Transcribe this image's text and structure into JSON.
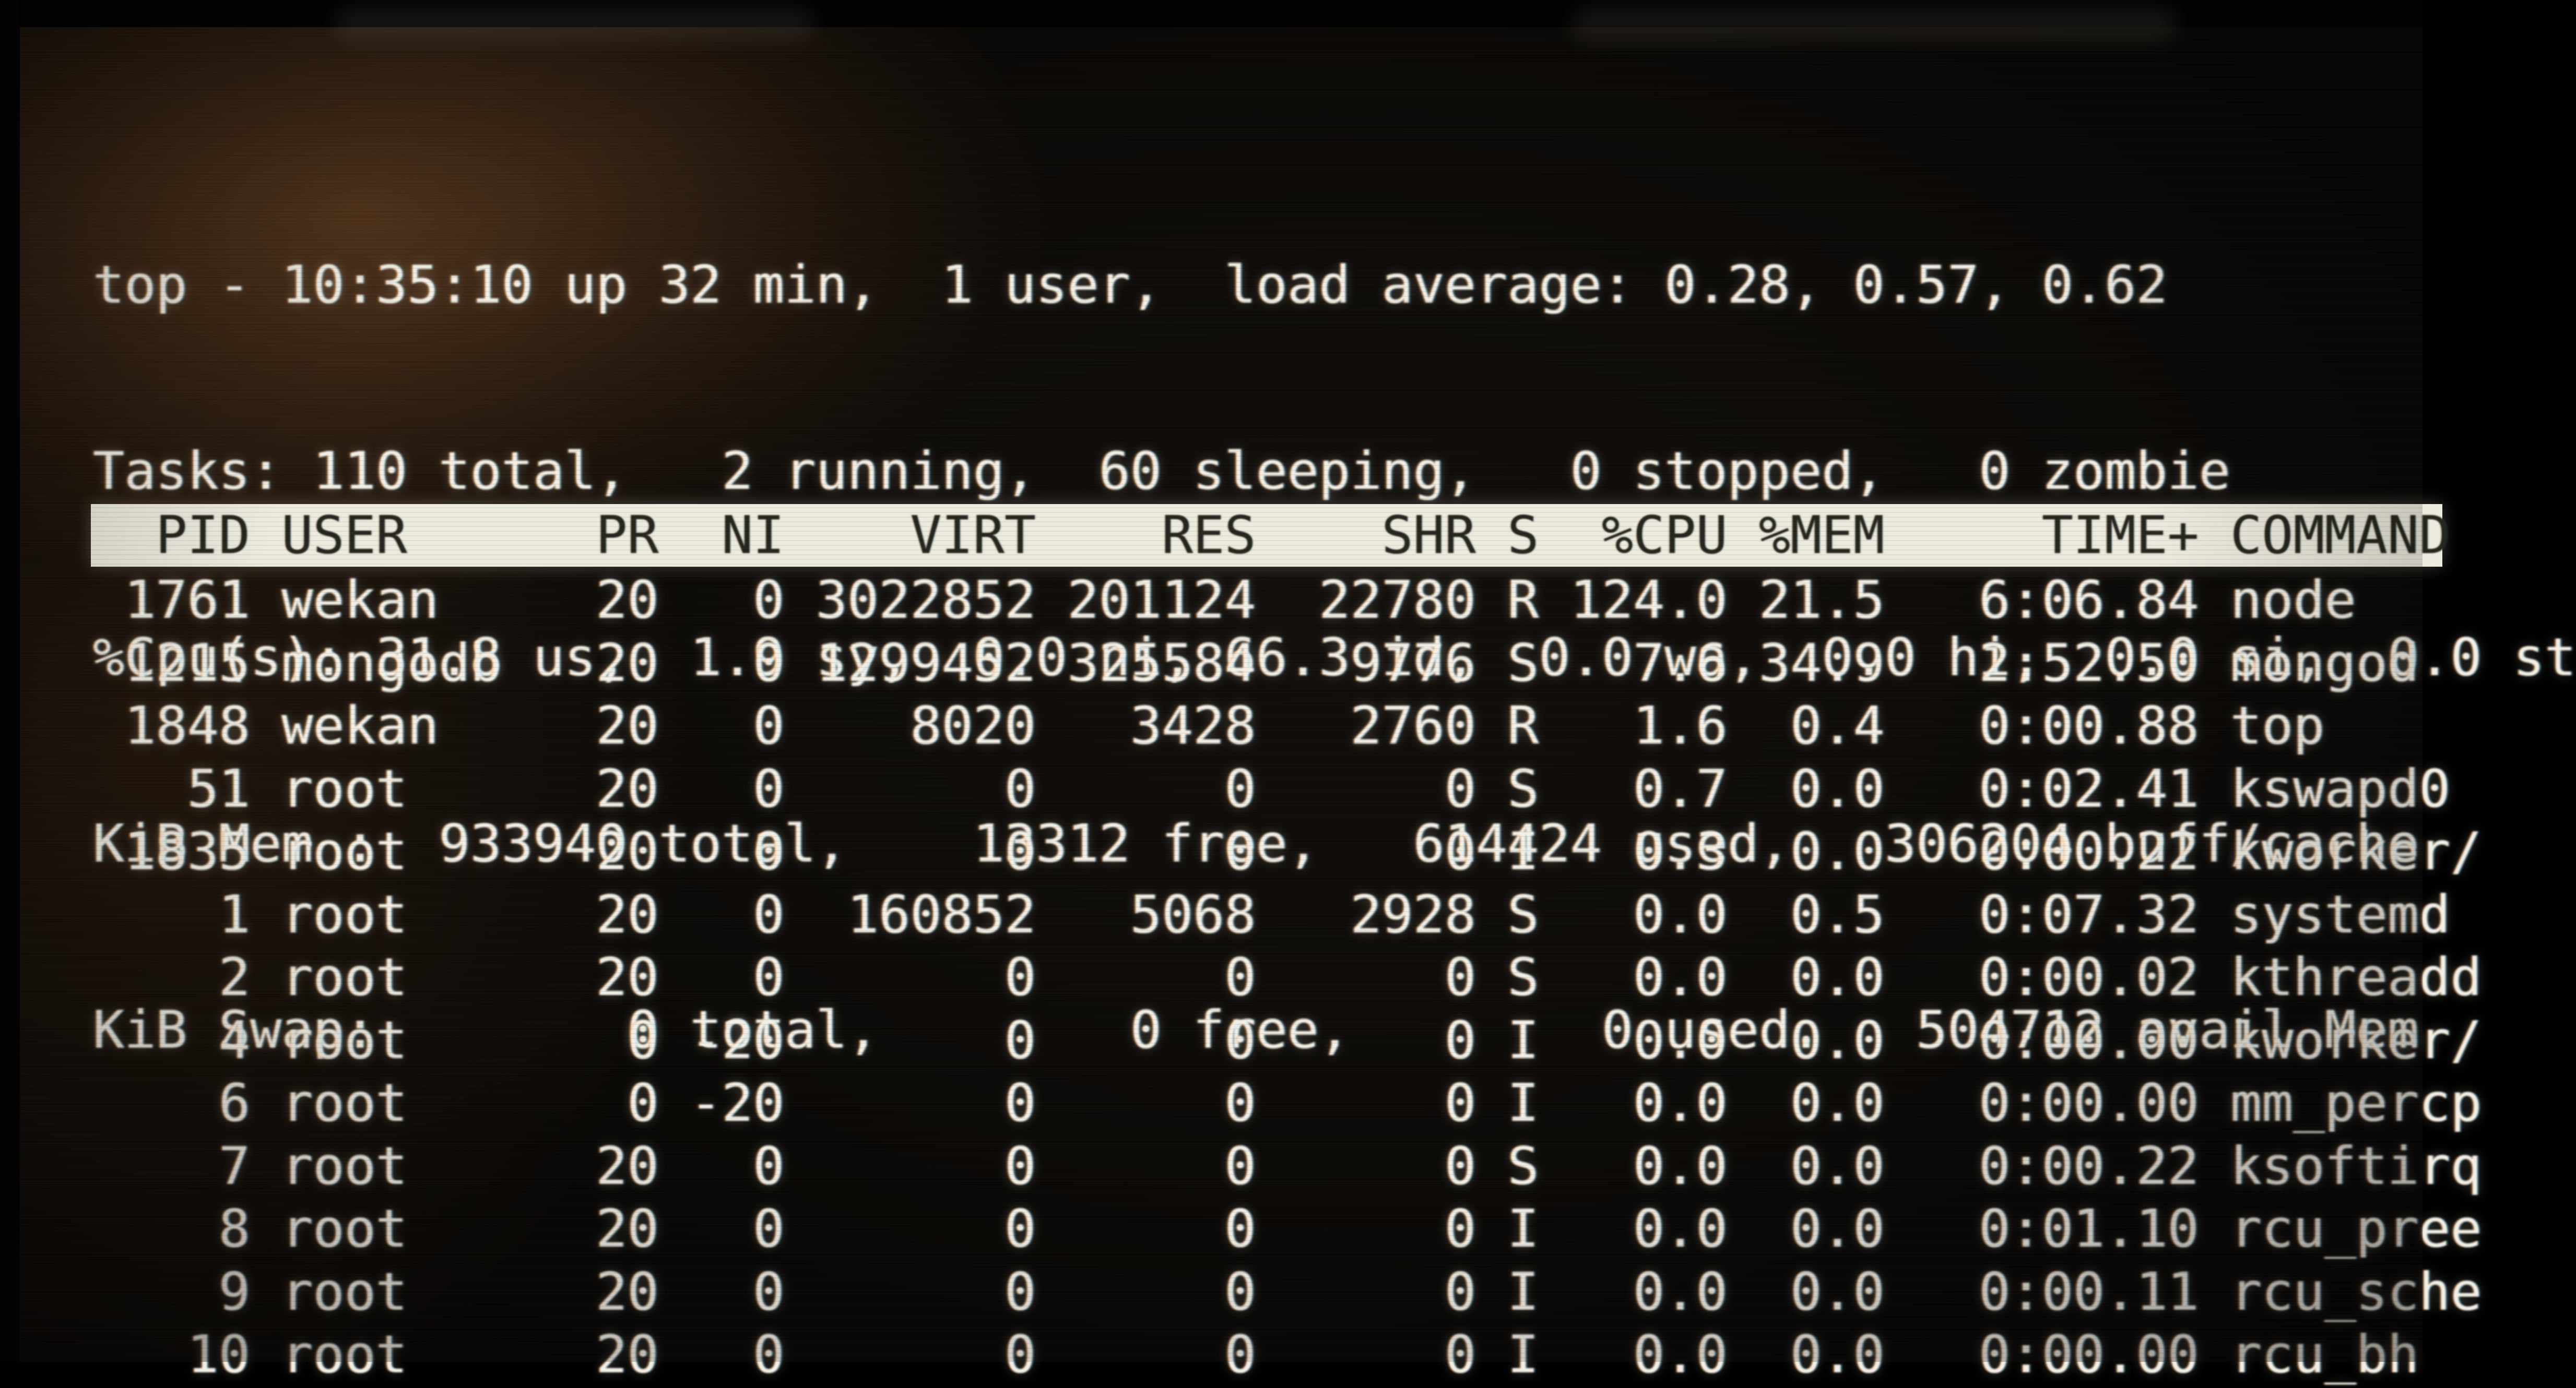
{
  "colors": {
    "screen_text": "#f2efe6",
    "header_bar_bg": "#edeade",
    "header_bar_fg": "#26261f"
  },
  "terminal": {
    "summary_lines": [
      "top - 10:35:10 up 32 min,  1 user,  load average: 0.28, 0.57, 0.62",
      "Tasks: 110 total,   2 running,  60 sleeping,   0 stopped,   0 zombie",
      "%Cpu(s): 31.8 us,  1.9 sy,  0.0 ni, 66.3 id,  0.0 wa,  0.0 hi,  0.0 si,  0.0 st",
      "KiB Mem :  933940 total,    13312 free,   614424 used,   306204 buff/cache",
      "KiB Swap:        0 total,        0 free,        0 used.   504712 avail Mem"
    ],
    "table": {
      "columns": [
        "PID",
        "USER",
        "PR",
        "NI",
        "VIRT",
        "RES",
        "SHR",
        "S",
        "%CPU",
        "%MEM",
        "TIME+",
        "COMMAND"
      ],
      "rows": [
        {
          "pid": "1761",
          "user": "wekan",
          "pr": "20",
          "ni": "0",
          "virt": "3022852",
          "res": "201124",
          "shr": "22780",
          "s": "R",
          "cpu": "124.0",
          "mem": "21.5",
          "time": "6:06.84",
          "command": "node"
        },
        {
          "pid": "1215",
          "user": "mongodb",
          "pr": "20",
          "ni": "0",
          "virt": "1299452",
          "res": "325584",
          "shr": "9776",
          "s": "S",
          "cpu": "7.6",
          "mem": "34.9",
          "time": "2:52.50",
          "command": "mongod"
        },
        {
          "pid": "1848",
          "user": "wekan",
          "pr": "20",
          "ni": "0",
          "virt": "8020",
          "res": "3428",
          "shr": "2760",
          "s": "R",
          "cpu": "1.6",
          "mem": "0.4",
          "time": "0:00.88",
          "command": "top"
        },
        {
          "pid": "51",
          "user": "root",
          "pr": "20",
          "ni": "0",
          "virt": "0",
          "res": "0",
          "shr": "0",
          "s": "S",
          "cpu": "0.7",
          "mem": "0.0",
          "time": "0:02.41",
          "command": "kswapd0"
        },
        {
          "pid": "1835",
          "user": "root",
          "pr": "20",
          "ni": "0",
          "virt": "0",
          "res": "0",
          "shr": "0",
          "s": "I",
          "cpu": "0.3",
          "mem": "0.0",
          "time": "0:00.22",
          "command": "kworker/"
        },
        {
          "pid": "1",
          "user": "root",
          "pr": "20",
          "ni": "0",
          "virt": "160852",
          "res": "5068",
          "shr": "2928",
          "s": "S",
          "cpu": "0.0",
          "mem": "0.5",
          "time": "0:07.32",
          "command": "systemd"
        },
        {
          "pid": "2",
          "user": "root",
          "pr": "20",
          "ni": "0",
          "virt": "0",
          "res": "0",
          "shr": "0",
          "s": "S",
          "cpu": "0.0",
          "mem": "0.0",
          "time": "0:00.02",
          "command": "kthreadd"
        },
        {
          "pid": "4",
          "user": "root",
          "pr": "0",
          "ni": "-20",
          "virt": "0",
          "res": "0",
          "shr": "0",
          "s": "I",
          "cpu": "0.0",
          "mem": "0.0",
          "time": "0:00.00",
          "command": "kworker/"
        },
        {
          "pid": "6",
          "user": "root",
          "pr": "0",
          "ni": "-20",
          "virt": "0",
          "res": "0",
          "shr": "0",
          "s": "I",
          "cpu": "0.0",
          "mem": "0.0",
          "time": "0:00.00",
          "command": "mm_percp"
        },
        {
          "pid": "7",
          "user": "root",
          "pr": "20",
          "ni": "0",
          "virt": "0",
          "res": "0",
          "shr": "0",
          "s": "S",
          "cpu": "0.0",
          "mem": "0.0",
          "time": "0:00.22",
          "command": "ksoftirq"
        },
        {
          "pid": "8",
          "user": "root",
          "pr": "20",
          "ni": "0",
          "virt": "0",
          "res": "0",
          "shr": "0",
          "s": "I",
          "cpu": "0.0",
          "mem": "0.0",
          "time": "0:01.10",
          "command": "rcu_pree"
        },
        {
          "pid": "9",
          "user": "root",
          "pr": "20",
          "ni": "0",
          "virt": "0",
          "res": "0",
          "shr": "0",
          "s": "I",
          "cpu": "0.0",
          "mem": "0.0",
          "time": "0:00.11",
          "command": "rcu_sche"
        },
        {
          "pid": "10",
          "user": "root",
          "pr": "20",
          "ni": "0",
          "virt": "0",
          "res": "0",
          "shr": "0",
          "s": "I",
          "cpu": "0.0",
          "mem": "0.0",
          "time": "0:00.00",
          "command": "rcu_bh"
        }
      ]
    }
  }
}
